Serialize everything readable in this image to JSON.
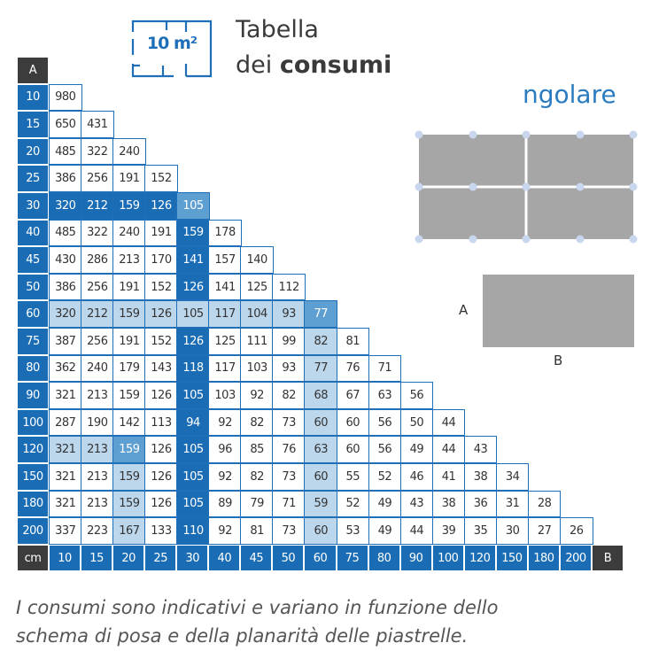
{
  "header": {
    "icon_label": "10 m²",
    "title_line1": "Tabella",
    "title_line2_prefix": "dei ",
    "title_line2_bold": "consumi",
    "subtitle_fragment": "ngolare"
  },
  "diagram": {
    "label_a": "A",
    "label_b": "B"
  },
  "table": {
    "corner_a": "A",
    "corner_cm": "cm",
    "corner_b": "B",
    "col_headers": [
      "10",
      "15",
      "20",
      "25",
      "30",
      "40",
      "45",
      "50",
      "60",
      "75",
      "80",
      "90",
      "100",
      "120",
      "150",
      "180",
      "200"
    ],
    "rows": [
      {
        "a": "10",
        "values": [
          "980"
        ],
        "shade": [
          ""
        ]
      },
      {
        "a": "15",
        "values": [
          "650",
          "431"
        ],
        "shade": [
          "",
          ""
        ]
      },
      {
        "a": "20",
        "values": [
          "485",
          "322",
          "240"
        ],
        "shade": [
          "",
          "",
          ""
        ]
      },
      {
        "a": "25",
        "values": [
          "386",
          "256",
          "191",
          "152"
        ],
        "shade": [
          "",
          "",
          "",
          ""
        ]
      },
      {
        "a": "30",
        "values": [
          "320",
          "212",
          "159",
          "126",
          "105"
        ],
        "shade": [
          "d",
          "d",
          "d",
          "d",
          "m"
        ]
      },
      {
        "a": "40",
        "values": [
          "485",
          "322",
          "240",
          "191",
          "159",
          "178"
        ],
        "shade": [
          "",
          "",
          "",
          "",
          "d",
          ""
        ]
      },
      {
        "a": "45",
        "values": [
          "430",
          "286",
          "213",
          "170",
          "141",
          "157",
          "140"
        ],
        "shade": [
          "",
          "",
          "",
          "",
          "d",
          "",
          ""
        ]
      },
      {
        "a": "50",
        "values": [
          "386",
          "256",
          "191",
          "152",
          "126",
          "141",
          "125",
          "112"
        ],
        "shade": [
          "",
          "",
          "",
          "",
          "d",
          "",
          "",
          ""
        ]
      },
      {
        "a": "60",
        "values": [
          "320",
          "212",
          "159",
          "126",
          "105",
          "117",
          "104",
          "93",
          "77"
        ],
        "shade": [
          "l",
          "l",
          "l",
          "l",
          "l",
          "l",
          "l",
          "l",
          "m"
        ]
      },
      {
        "a": "75",
        "values": [
          "387",
          "256",
          "191",
          "152",
          "126",
          "125",
          "111",
          "99",
          "82",
          "81"
        ],
        "shade": [
          "",
          "",
          "",
          "",
          "d",
          "",
          "",
          "",
          "l",
          ""
        ]
      },
      {
        "a": "80",
        "values": [
          "362",
          "240",
          "179",
          "143",
          "118",
          "117",
          "103",
          "93",
          "77",
          "76",
          "71"
        ],
        "shade": [
          "",
          "",
          "",
          "",
          "d",
          "",
          "",
          "",
          "l",
          "",
          ""
        ]
      },
      {
        "a": "90",
        "values": [
          "321",
          "213",
          "159",
          "126",
          "105",
          "103",
          "92",
          "82",
          "68",
          "67",
          "63",
          "56"
        ],
        "shade": [
          "",
          "",
          "",
          "",
          "d",
          "",
          "",
          "",
          "l",
          "",
          "",
          ""
        ]
      },
      {
        "a": "100",
        "values": [
          "287",
          "190",
          "142",
          "113",
          "94",
          "92",
          "82",
          "73",
          "60",
          "60",
          "56",
          "50",
          "44"
        ],
        "shade": [
          "",
          "",
          "",
          "",
          "d",
          "",
          "",
          "",
          "l",
          "",
          "",
          "",
          ""
        ]
      },
      {
        "a": "120",
        "values": [
          "321",
          "213",
          "159",
          "126",
          "105",
          "96",
          "85",
          "76",
          "63",
          "60",
          "56",
          "49",
          "44",
          "43"
        ],
        "shade": [
          "l",
          "l",
          "m",
          "",
          "d",
          "",
          "",
          "",
          "l",
          "",
          "",
          "",
          "",
          ""
        ]
      },
      {
        "a": "150",
        "values": [
          "321",
          "213",
          "159",
          "126",
          "105",
          "92",
          "82",
          "73",
          "60",
          "55",
          "52",
          "46",
          "41",
          "38",
          "34"
        ],
        "shade": [
          "",
          "",
          "l",
          "",
          "d",
          "",
          "",
          "",
          "l",
          "",
          "",
          "",
          "",
          "",
          ""
        ]
      },
      {
        "a": "180",
        "values": [
          "321",
          "213",
          "159",
          "126",
          "105",
          "89",
          "79",
          "71",
          "59",
          "52",
          "49",
          "43",
          "38",
          "36",
          "31",
          "28"
        ],
        "shade": [
          "",
          "",
          "l",
          "",
          "d",
          "",
          "",
          "",
          "l",
          "",
          "",
          "",
          "",
          "",
          "",
          ""
        ]
      },
      {
        "a": "200",
        "values": [
          "337",
          "223",
          "167",
          "133",
          "110",
          "92",
          "81",
          "73",
          "60",
          "53",
          "49",
          "44",
          "39",
          "35",
          "30",
          "27",
          "26"
        ],
        "shade": [
          "",
          "",
          "l",
          "",
          "d",
          "",
          "",
          "",
          "l",
          "",
          "",
          "",
          "",
          "",
          "",
          "",
          ""
        ]
      }
    ]
  },
  "note": {
    "line1": "I consumi sono indicativi e variano in funzione dello",
    "line2": "schema di posa e della planarità delle piastrelle."
  },
  "colors": {
    "primary": "#1a6db5",
    "light": "#bcd6ec",
    "medium": "#5e9fd2",
    "dark_header": "#3c3c3c",
    "tile": "#a6a6a6",
    "dot": "#c9d7ee"
  }
}
